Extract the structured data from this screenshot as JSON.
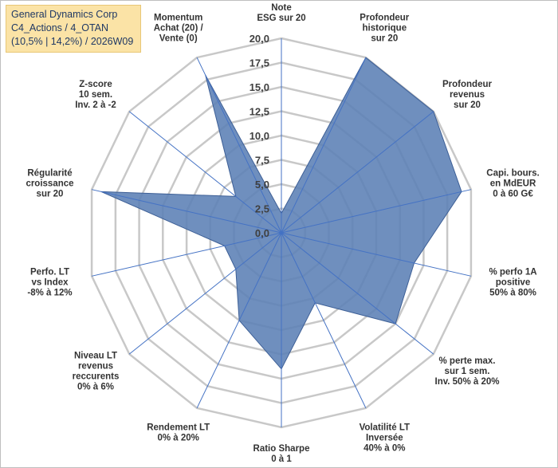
{
  "header": {
    "line1": "General Dynamics Corp",
    "line2": "C4_Actions / 4_OTAN",
    "line3": "(10,5% | 14,2%) / 2026W09"
  },
  "colors": {
    "fill": "#5b7fb5",
    "stroke": "#3d5f96",
    "grid": "#c8c8c8",
    "spoke": "#4472c4",
    "title_bg": "#fbe3a6"
  },
  "chart_data": {
    "type": "radar",
    "title": "",
    "range": [
      0,
      20
    ],
    "grid": true,
    "ticks": [
      "0,0",
      "2,5",
      "5,0",
      "7,5",
      "10,0",
      "12,5",
      "15,0",
      "17,5",
      "20,0"
    ],
    "categories": [
      [
        "Note",
        "ESG sur 20"
      ],
      [
        "Profondeur",
        "historique",
        "sur 20"
      ],
      [
        "Profondeur",
        "revenus",
        "sur 20"
      ],
      [
        "Capi. bours.",
        "en MdEUR",
        "0 à 60 G€"
      ],
      [
        "% perfo 1A",
        "positive",
        "50% à 80%"
      ],
      [
        "% perte max.",
        "sur 1 sem.",
        "Inv. 50% à 20%"
      ],
      [
        "Volatilité LT",
        "Inversée",
        "40% à 0%"
      ],
      [
        "Ratio Sharpe",
        "0 à 1"
      ],
      [
        "Rendement LT",
        "0% à 20%"
      ],
      [
        "Niveau LT",
        "revenus",
        "reccurents",
        "0% à 6%"
      ],
      [
        "Perfo. LT",
        "vs Index",
        "-8% à 12%"
      ],
      [
        "Régularité",
        "croissance",
        "sur 20"
      ],
      [
        "Z-score",
        "10 sem.",
        "Inv. 2 à -2"
      ],
      [
        "Momentum",
        "Achat (20) /",
        "Vente (0)"
      ]
    ],
    "series": [
      {
        "values": [
          2,
          20,
          20,
          19,
          14,
          15,
          8,
          14,
          10,
          6,
          6,
          19,
          6,
          18
        ]
      }
    ]
  }
}
